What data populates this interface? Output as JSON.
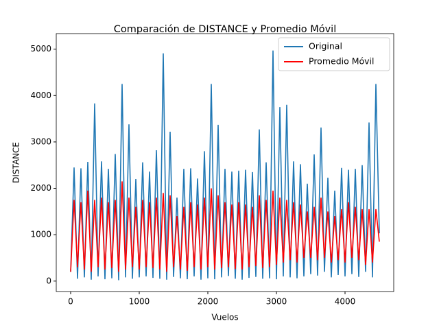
{
  "chart_data": {
    "type": "line",
    "title": "Comparación de DISTANCE y Promedio Móvil",
    "x_label": "Vuelos",
    "y_label": "DISTANCE",
    "x": [
      0,
      50,
      100,
      150,
      200,
      250,
      300,
      350,
      400,
      450,
      500,
      550,
      600,
      650,
      700,
      750,
      800,
      850,
      900,
      950,
      1000,
      1050,
      1100,
      1150,
      1200,
      1250,
      1300,
      1350,
      1400,
      1450,
      1500,
      1550,
      1600,
      1650,
      1700,
      1750,
      1800,
      1850,
      1900,
      1950,
      2000,
      2050,
      2100,
      2150,
      2200,
      2250,
      2300,
      2350,
      2400,
      2450,
      2500,
      2550,
      2600,
      2650,
      2700,
      2750,
      2800,
      2850,
      2900,
      2950,
      3000,
      3050,
      3100,
      3150,
      3200,
      3250,
      3300,
      3350,
      3400,
      3450,
      3500,
      3550,
      3600,
      3650,
      3700,
      3750,
      3800,
      3850,
      3900,
      3950,
      4000,
      4050,
      4100,
      4150,
      4200,
      4250,
      4300,
      4350,
      4400,
      4450,
      4500
    ],
    "series": [
      {
        "name": "Original",
        "color": "#1f77b4",
        "values": [
          200,
          2450,
          50,
          2430,
          80,
          2570,
          30,
          3830,
          100,
          2580,
          40,
          2420,
          60,
          2740,
          20,
          4250,
          80,
          3380,
          50,
          2200,
          80,
          2560,
          100,
          2360,
          70,
          2820,
          50,
          4910,
          30,
          3220,
          90,
          1800,
          60,
          2420,
          40,
          2430,
          100,
          2210,
          30,
          2800,
          60,
          4250,
          40,
          3370,
          80,
          2420,
          110,
          2360,
          50,
          2380,
          30,
          2400,
          70,
          2350,
          90,
          3270,
          50,
          2560,
          60,
          4970,
          40,
          3750,
          100,
          3800,
          80,
          2580,
          60,
          2520,
          100,
          2100,
          150,
          2730,
          120,
          3310,
          200,
          2230,
          80,
          1950,
          130,
          2440,
          100,
          2400,
          150,
          2420,
          90,
          2500,
          200,
          3420,
          80,
          4250,
          1030
        ]
      },
      {
        "name": "Promedio Móvil",
        "color": "#ff0000",
        "values": [
          200,
          1750,
          300,
          1700,
          250,
          1950,
          200,
          1750,
          300,
          1800,
          250,
          1700,
          280,
          1750,
          200,
          2150,
          250,
          1800,
          300,
          1600,
          250,
          1750,
          300,
          1700,
          280,
          1800,
          250,
          1900,
          200,
          1850,
          300,
          1400,
          250,
          1600,
          220,
          1700,
          300,
          1650,
          250,
          1800,
          300,
          2000,
          250,
          1850,
          280,
          1700,
          300,
          1650,
          260,
          1700,
          250,
          1650,
          300,
          1600,
          320,
          1850,
          280,
          1750,
          300,
          1950,
          350,
          1800,
          400,
          1750,
          450,
          1700,
          400,
          1650,
          500,
          1500,
          500,
          1600,
          450,
          1800,
          500,
          1500,
          400,
          1400,
          450,
          1550,
          400,
          1700,
          500,
          1600,
          450,
          1550,
          350,
          1550,
          400,
          1550,
          850
        ]
      }
    ],
    "xlim": [
      -210,
      4710
    ],
    "ylim": [
      -225,
      5335
    ],
    "xticks": [
      0,
      1000,
      2000,
      3000,
      4000
    ],
    "yticks": [
      0,
      1000,
      2000,
      3000,
      4000,
      5000
    ],
    "legend": "upper right"
  }
}
